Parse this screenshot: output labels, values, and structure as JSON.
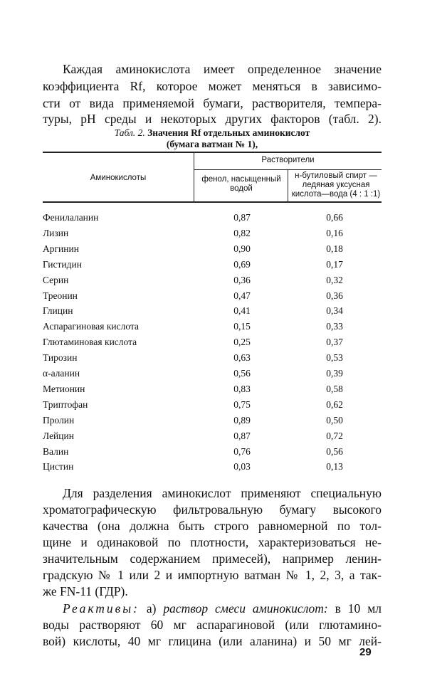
{
  "paragraph1": [
    "Каждая аминокислота имеет определенное значение",
    "коэффициента Rf, которое может меняться в зависимо-",
    "сти от вида применяемой бумаги, растворителя, темпера-",
    "туры, pH среды и некоторых других факторов (табл. 2)."
  ],
  "table": {
    "caption_label": "Табл. 2.",
    "caption_line1": "Значения Rf отдельных аминокислот",
    "caption_line2": "(бумага ватман № 1),",
    "header_col0": "Аминокислоты",
    "header_group": "Растворители",
    "header_col1": "фенол, насыщенный водой",
    "header_col2": "н-бутиловый спирт — ледяная уксусная кислота—вода (4 : 1 :1)",
    "rows": [
      [
        "Фенилаланин",
        "0,87",
        "0,66"
      ],
      [
        "Лизин",
        "0,82",
        "0,16"
      ],
      [
        "Аргинин",
        "0,90",
        "0,18"
      ],
      [
        "Гистидин",
        "0,69",
        "0,17"
      ],
      [
        "Серин",
        "0,36",
        "0,32"
      ],
      [
        "Треонин",
        "0,47",
        "0,36"
      ],
      [
        "Глицин",
        "0,41",
        "0,34"
      ],
      [
        "Аспарагиновая кислота",
        "0,15",
        "0,33"
      ],
      [
        "Глютаминовая кислота",
        "0,25",
        "0,37"
      ],
      [
        "Тирозин",
        "0,63",
        "0,53"
      ],
      [
        "α-аланин",
        "0,56",
        "0,39"
      ],
      [
        "Метионин",
        "0,83",
        "0,58"
      ],
      [
        "Триптофан",
        "0,75",
        "0,62"
      ],
      [
        "Пролин",
        "0,89",
        "0,50"
      ],
      [
        "Лейцин",
        "0,87",
        "0,72"
      ],
      [
        "Валин",
        "0,76",
        "0,56"
      ],
      [
        "Цистин",
        "0,03",
        "0,13"
      ]
    ]
  },
  "paragraph2": [
    "Для разделения аминокислот применяют специальную",
    "хроматографическую фильтровальную бумагу высокого",
    "качества (она должна быть строго равномерной по тол-",
    "щине и одинаковой по плотности, характеризоваться не-",
    "значительным содержанием примесей), например ленин-",
    "градскую № 1 или 2 и импортную ватман № 1, 2, 3, а так-",
    "же FN-11 (ГДР)."
  ],
  "paragraph3": {
    "label": "Реактивы:",
    "rest_line1_a": "а)",
    "rest_line1_italic": "раствор смеси аминокислот:",
    "rest_line1_b": "в 10 мл",
    "lines": [
      "воды растворяют 60 мг аспарагиновой (или глютамино-",
      "вой) кислоты, 40 мг глицина (или аланина) и 50 мг лей-"
    ]
  },
  "page_number": "29"
}
